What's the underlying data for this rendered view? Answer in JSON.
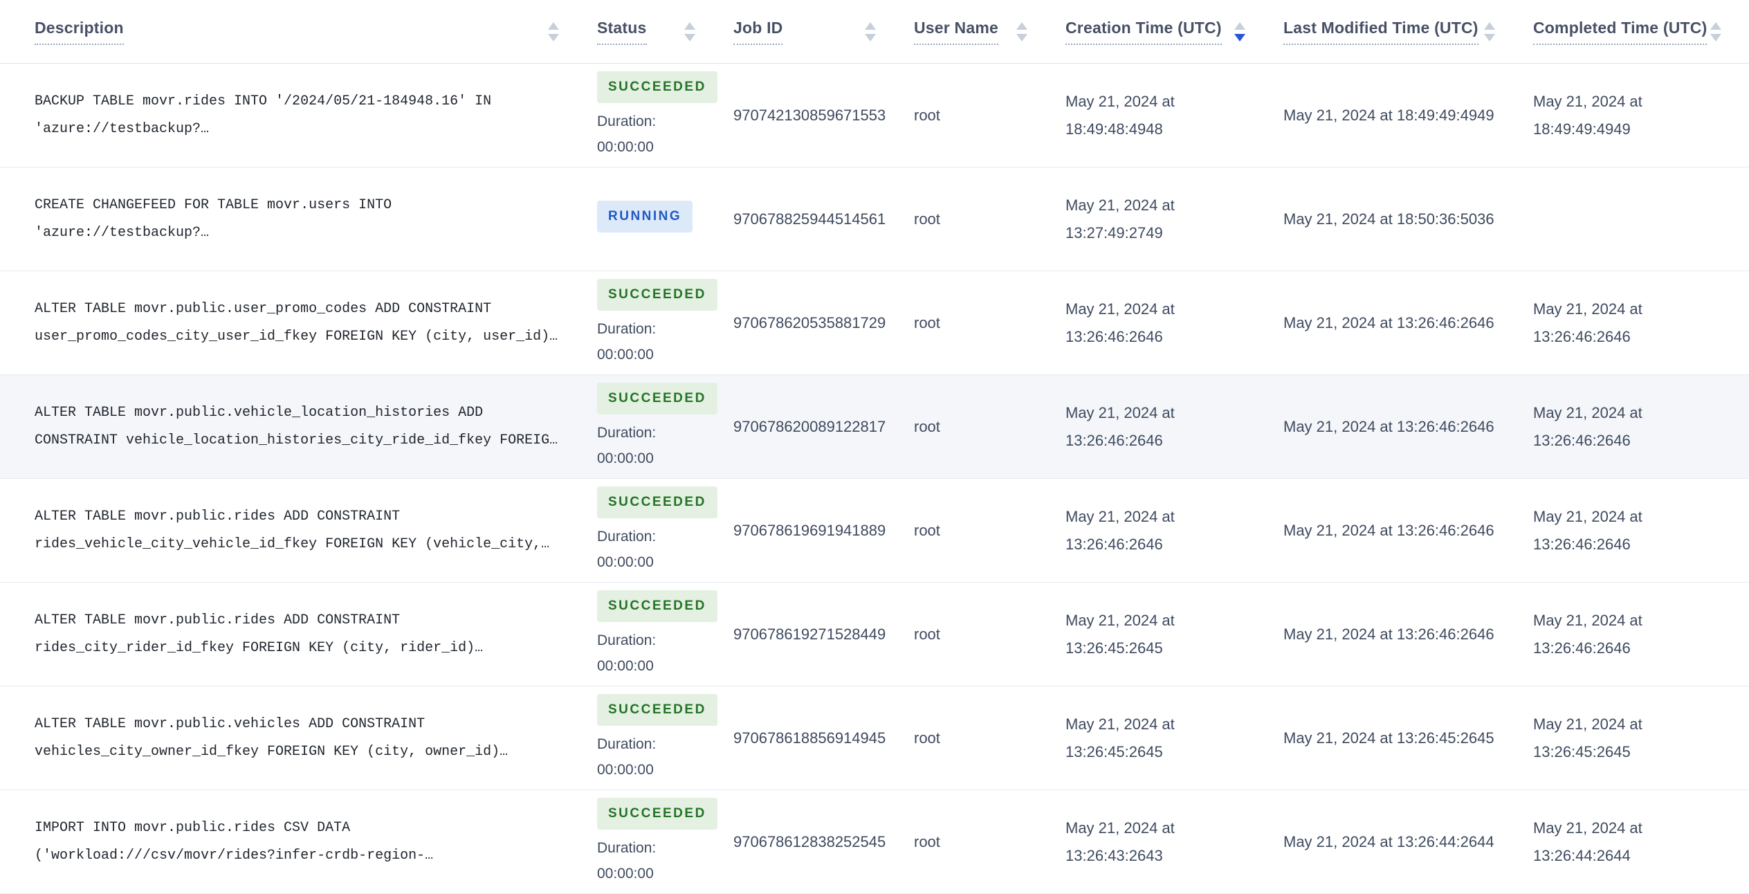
{
  "colors": {
    "succeeded_badge_bg": "#e4f0e1",
    "succeeded_badge_text": "#237326",
    "running_badge_bg": "#dce9f9",
    "running_badge_text": "#2058c4",
    "header_text": "#475066",
    "body_text": "#3e4a5e",
    "active_sort_arrow": "#2955d9",
    "row_divider": "#e7eaf0",
    "highlighted_row_bg": "#f4f6fa"
  },
  "table": {
    "columns": [
      {
        "label": "Description",
        "sorted": "none"
      },
      {
        "label": "Status",
        "sorted": "none"
      },
      {
        "label": "Job ID",
        "sorted": "none"
      },
      {
        "label": "User Name",
        "sorted": "none"
      },
      {
        "label": "Creation Time (UTC)",
        "sorted": "desc"
      },
      {
        "label": "Last Modified Time (UTC)",
        "sorted": "none"
      },
      {
        "label": "Completed Time (UTC)",
        "sorted": "none"
      }
    ],
    "rows": [
      {
        "description": "BACKUP TABLE movr.rides INTO '/2024/05/21-184948.16' IN 'azure://testbackup?…",
        "status": "SUCCEEDED",
        "duration_label": "Duration:",
        "duration_value": "00:00:00",
        "job_id": "970742130859671553",
        "user": "root",
        "created": "May 21, 2024 at 18:49:48:4948",
        "modified": "May 21, 2024 at 18:49:49:4949",
        "completed": "May 21, 2024 at 18:49:49:4949"
      },
      {
        "description": "CREATE CHANGEFEED FOR TABLE movr.users INTO 'azure://testbackup?…",
        "status": "RUNNING",
        "duration_label": "",
        "duration_value": "",
        "job_id": "970678825944514561",
        "user": "root",
        "created": "May 21, 2024 at 13:27:49:2749",
        "modified": "May 21, 2024 at 18:50:36:5036",
        "completed": ""
      },
      {
        "description": "ALTER TABLE movr.public.user_promo_codes ADD CONSTRAINT user_promo_codes_city_user_id_fkey FOREIGN KEY (city, user_id)…",
        "status": "SUCCEEDED",
        "duration_label": "Duration:",
        "duration_value": "00:00:00",
        "job_id": "970678620535881729",
        "user": "root",
        "created": "May 21, 2024 at 13:26:46:2646",
        "modified": "May 21, 2024 at 13:26:46:2646",
        "completed": "May 21, 2024 at 13:26:46:2646"
      },
      {
        "description": "ALTER TABLE movr.public.vehicle_location_histories ADD CONSTRAINT vehicle_location_histories_city_ride_id_fkey FOREIG…",
        "status": "SUCCEEDED",
        "duration_label": "Duration:",
        "duration_value": "00:00:00",
        "job_id": "970678620089122817",
        "user": "root",
        "created": "May 21, 2024 at 13:26:46:2646",
        "modified": "May 21, 2024 at 13:26:46:2646",
        "completed": "May 21, 2024 at 13:26:46:2646"
      },
      {
        "description": "ALTER TABLE movr.public.rides ADD CONSTRAINT rides_vehicle_city_vehicle_id_fkey FOREIGN KEY (vehicle_city,…",
        "status": "SUCCEEDED",
        "duration_label": "Duration:",
        "duration_value": "00:00:00",
        "job_id": "970678619691941889",
        "user": "root",
        "created": "May 21, 2024 at 13:26:46:2646",
        "modified": "May 21, 2024 at 13:26:46:2646",
        "completed": "May 21, 2024 at 13:26:46:2646"
      },
      {
        "description": "ALTER TABLE movr.public.rides ADD CONSTRAINT rides_city_rider_id_fkey FOREIGN KEY (city, rider_id)…",
        "status": "SUCCEEDED",
        "duration_label": "Duration:",
        "duration_value": "00:00:00",
        "job_id": "970678619271528449",
        "user": "root",
        "created": "May 21, 2024 at 13:26:45:2645",
        "modified": "May 21, 2024 at 13:26:46:2646",
        "completed": "May 21, 2024 at 13:26:46:2646"
      },
      {
        "description": "ALTER TABLE movr.public.vehicles ADD CONSTRAINT vehicles_city_owner_id_fkey FOREIGN KEY (city, owner_id)…",
        "status": "SUCCEEDED",
        "duration_label": "Duration:",
        "duration_value": "00:00:00",
        "job_id": "970678618856914945",
        "user": "root",
        "created": "May 21, 2024 at 13:26:45:2645",
        "modified": "May 21, 2024 at 13:26:45:2645",
        "completed": "May 21, 2024 at 13:26:45:2645"
      },
      {
        "description": "IMPORT INTO movr.public.rides CSV DATA ('workload:///csv/movr/rides?infer-crdb-region-…",
        "status": "SUCCEEDED",
        "duration_label": "Duration:",
        "duration_value": "00:00:00",
        "job_id": "970678612838252545",
        "user": "root",
        "created": "May 21, 2024 at 13:26:43:2643",
        "modified": "May 21, 2024 at 13:26:44:2644",
        "completed": "May 21, 2024 at 13:26:44:2644"
      }
    ]
  }
}
